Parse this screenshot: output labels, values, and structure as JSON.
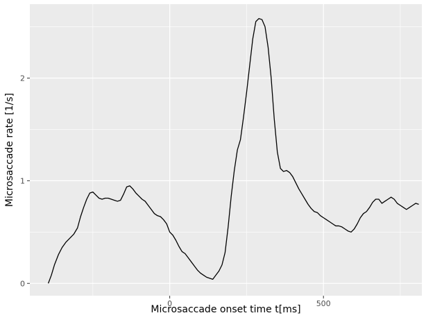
{
  "chart_data": {
    "type": "line",
    "title": "",
    "xlabel": "Microsaccade onset time  t[ms]",
    "ylabel": "Microsaccade rate [1/s]",
    "xlim": [
      -455,
      820
    ],
    "ylim": [
      -0.12,
      2.72
    ],
    "x_ticks": [
      0,
      500
    ],
    "x_tick_labels": [
      "0",
      "500"
    ],
    "y_ticks": [
      0,
      1,
      2
    ],
    "y_tick_labels": [
      "0",
      "1",
      "2"
    ],
    "grid": true,
    "legend": "none",
    "panel_background": "#ebebeb",
    "line_color": "#000000",
    "series": [
      {
        "x": [
          -395,
          -385,
          -375,
          -362,
          -350,
          -338,
          -325,
          -312,
          -300,
          -290,
          -280,
          -270,
          -260,
          -250,
          -240,
          -230,
          -220,
          -210,
          -200,
          -190,
          -180,
          -170,
          -160,
          -150,
          -140,
          -130,
          -120,
          -110,
          -100,
          -90,
          -80,
          -70,
          -60,
          -50,
          -40,
          -30,
          -20,
          -10,
          0,
          10,
          20,
          30,
          40,
          50,
          60,
          70,
          80,
          90,
          100,
          110,
          120,
          130,
          140,
          150,
          160,
          170,
          180,
          190,
          200,
          210,
          220,
          230,
          240,
          250,
          260,
          270,
          280,
          290,
          300,
          310,
          320,
          330,
          340,
          350,
          360,
          370,
          380,
          390,
          400,
          410,
          420,
          430,
          440,
          450,
          460,
          470,
          480,
          490,
          500,
          510,
          520,
          530,
          540,
          550,
          560,
          570,
          580,
          590,
          600,
          610,
          620,
          630,
          640,
          650,
          660,
          670,
          680,
          690,
          700,
          710,
          720,
          730,
          740,
          750,
          760,
          770,
          780,
          790,
          800,
          810
        ],
        "y": [
          0,
          0.08,
          0.18,
          0.28,
          0.35,
          0.4,
          0.44,
          0.48,
          0.54,
          0.65,
          0.74,
          0.82,
          0.88,
          0.89,
          0.86,
          0.83,
          0.82,
          0.83,
          0.83,
          0.82,
          0.81,
          0.8,
          0.81,
          0.87,
          0.94,
          0.95,
          0.92,
          0.88,
          0.85,
          0.82,
          0.8,
          0.76,
          0.72,
          0.68,
          0.66,
          0.65,
          0.62,
          0.58,
          0.5,
          0.47,
          0.42,
          0.36,
          0.31,
          0.29,
          0.25,
          0.21,
          0.17,
          0.13,
          0.1,
          0.08,
          0.06,
          0.05,
          0.04,
          0.08,
          0.12,
          0.18,
          0.3,
          0.55,
          0.85,
          1.1,
          1.3,
          1.4,
          1.62,
          1.86,
          2.12,
          2.38,
          2.55,
          2.58,
          2.57,
          2.5,
          2.3,
          2.0,
          1.6,
          1.28,
          1.12,
          1.09,
          1.1,
          1.08,
          1.04,
          0.98,
          0.92,
          0.87,
          0.82,
          0.77,
          0.73,
          0.7,
          0.69,
          0.66,
          0.64,
          0.62,
          0.6,
          0.58,
          0.56,
          0.56,
          0.55,
          0.53,
          0.51,
          0.5,
          0.53,
          0.58,
          0.64,
          0.68,
          0.7,
          0.74,
          0.79,
          0.82,
          0.82,
          0.78,
          0.8,
          0.82,
          0.84,
          0.82,
          0.78,
          0.76,
          0.74,
          0.72,
          0.74,
          0.76,
          0.78,
          0.77
        ],
        "name": ""
      }
    ]
  }
}
